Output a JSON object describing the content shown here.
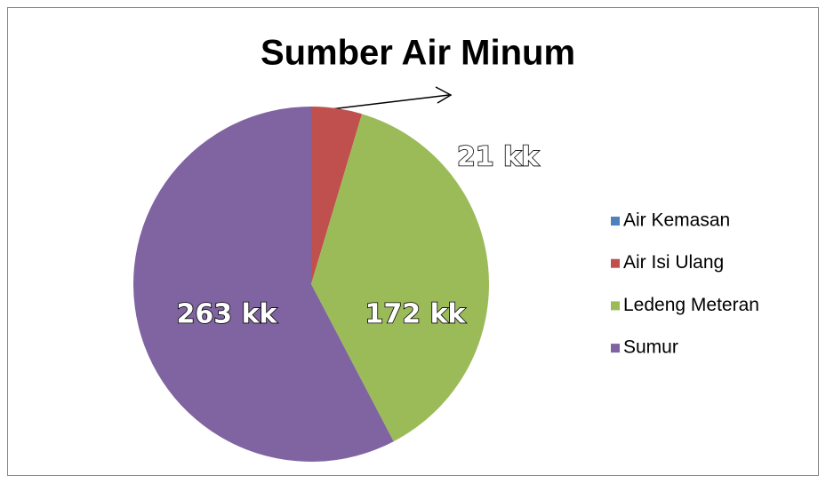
{
  "chart_data": {
    "type": "pie",
    "title": "Sumber Air Minum",
    "categories": [
      "Air Kemasan",
      "Air Isi Ulang",
      "Ledeng Meteran",
      "Sumur"
    ],
    "values": [
      0,
      21,
      172,
      263
    ],
    "value_labels": [
      null,
      "21 kk",
      "172 kk",
      "263 kk"
    ],
    "colors": [
      "#4f81bd",
      "#c0504d",
      "#9bbb59",
      "#8064a2"
    ],
    "legend": "right"
  }
}
